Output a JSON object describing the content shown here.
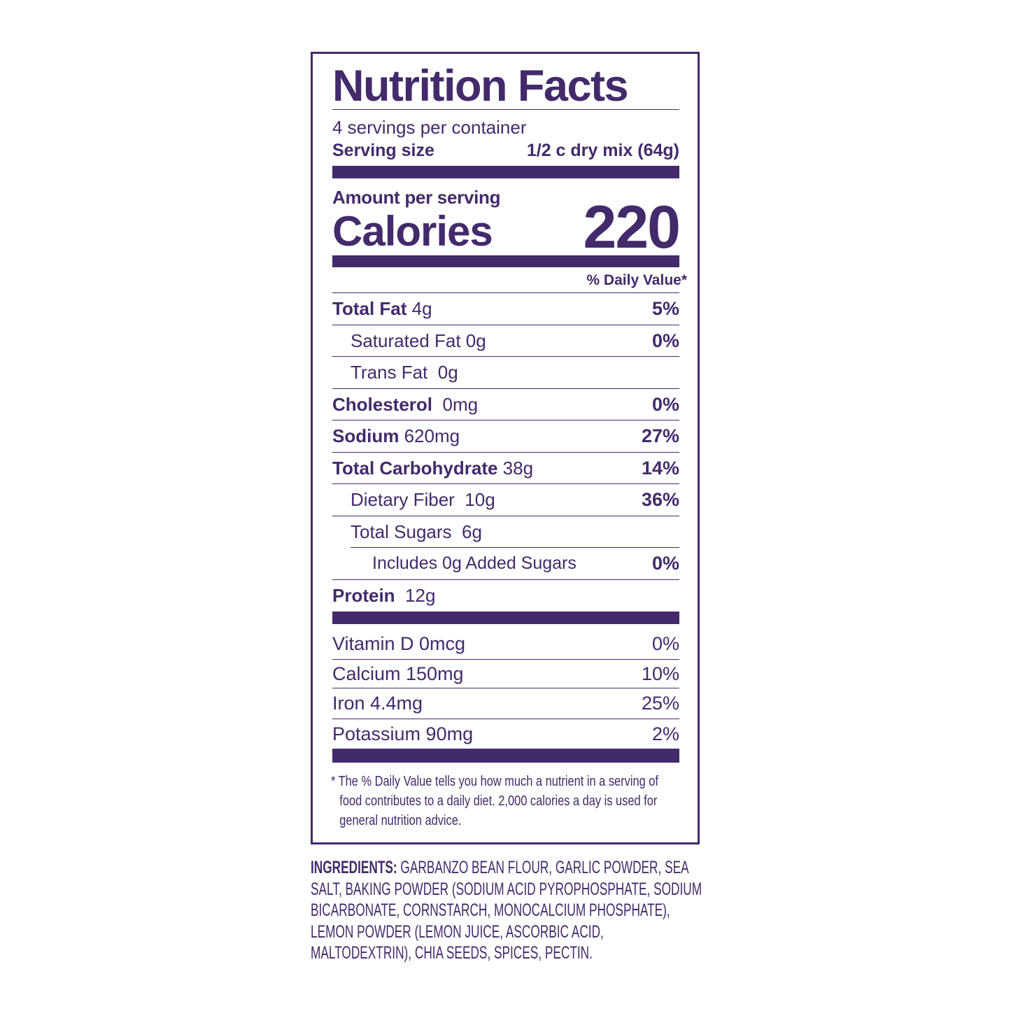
{
  "colors": {
    "label": "#432a6b",
    "background": "#ffffff"
  },
  "title": "Nutrition Facts",
  "servings_per_container": "4 servings per container",
  "serving_size": {
    "label": "Serving size",
    "value": "1/2 c dry mix (64g)"
  },
  "amount_per_serving": "Amount per serving",
  "calories": {
    "label": "Calories",
    "value": "220"
  },
  "daily_value_header": "% Daily Value*",
  "nutrients": [
    {
      "name": "Total Fat",
      "amount": "4g",
      "dv": "5%"
    },
    {
      "name": "Saturated Fat",
      "amount": "0g",
      "dv": "0%"
    },
    {
      "name": "Trans Fat",
      "amount": "0g",
      "dv": ""
    },
    {
      "name": "Cholesterol",
      "amount": "0mg",
      "dv": "0%"
    },
    {
      "name": "Sodium",
      "amount": "620mg",
      "dv": "27%"
    },
    {
      "name": "Total Carbohydrate",
      "amount": "38g",
      "dv": "14%"
    },
    {
      "name": "Dietary Fiber",
      "amount": "10g",
      "dv": "36%"
    },
    {
      "name": "Total Sugars",
      "amount": "6g",
      "dv": ""
    },
    {
      "name": "Includes 0g Added Sugars",
      "amount": "",
      "dv": "0%"
    },
    {
      "name": "Protein",
      "amount": "12g",
      "dv": ""
    }
  ],
  "micronutrients": [
    {
      "name": "Vitamin D 0mcg",
      "dv": "0%"
    },
    {
      "name": "Calcium 150mg",
      "dv": "10%"
    },
    {
      "name": "Iron 4.4mg",
      "dv": "25%"
    },
    {
      "name": "Potassium 90mg",
      "dv": "2%"
    }
  ],
  "footnote": [
    "* The % Daily Value tells you how much a nutrient in a serving of",
    "food contributes to a daily diet. 2,000 calories a day is used for",
    "general nutrition advice."
  ],
  "ingredients": {
    "label": "INGREDIENTS:",
    "lines": [
      " GARBANZO BEAN FLOUR, GARLIC POWDER, SEA",
      "SALT, BAKING POWDER (SODIUM ACID PYROPHOSPHATE, SODIUM",
      "BICARBONATE, CORNSTARCH, MONOCALCIUM PHOSPHATE),",
      "LEMON POWDER (LEMON JUICE, ASCORBIC ACID,",
      "MALTODEXTRIN), CHIA SEEDS, SPICES, PECTIN."
    ]
  }
}
